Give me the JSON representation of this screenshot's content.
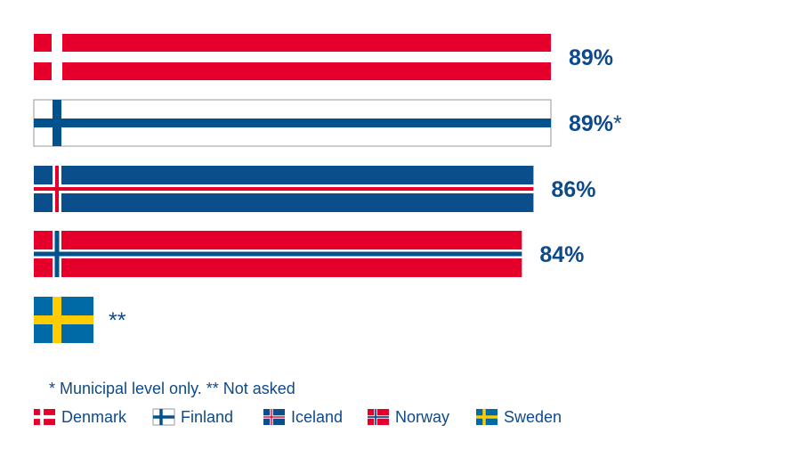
{
  "chart_data": {
    "type": "bar",
    "orientation": "horizontal",
    "title": "",
    "xlabel": "",
    "ylabel": "",
    "xlim": [
      0,
      100
    ],
    "grid": false,
    "legend_placement": "bottom-left",
    "categories": [
      "Denmark",
      "Finland",
      "Iceland",
      "Norway",
      "Sweden"
    ],
    "values": [
      89,
      89,
      86,
      84,
      null
    ],
    "data_labels": [
      "89%",
      "89%",
      "86%",
      "84%",
      ""
    ],
    "label_marks": [
      "",
      "*",
      "",
      "",
      "**"
    ],
    "footnote": "* Municipal level only. ** Not asked",
    "legend": [
      "Denmark",
      "Finland",
      "Iceland",
      "Norway",
      "Sweden"
    ],
    "colors": {
      "red": "#e4002b",
      "white": "#ffffff",
      "blue": "#00528c",
      "iceland_blue": "#0a4f8c",
      "yellow": "#fecc00",
      "sweden_blue": "#006aa7",
      "text": "#0e4a8a"
    }
  }
}
